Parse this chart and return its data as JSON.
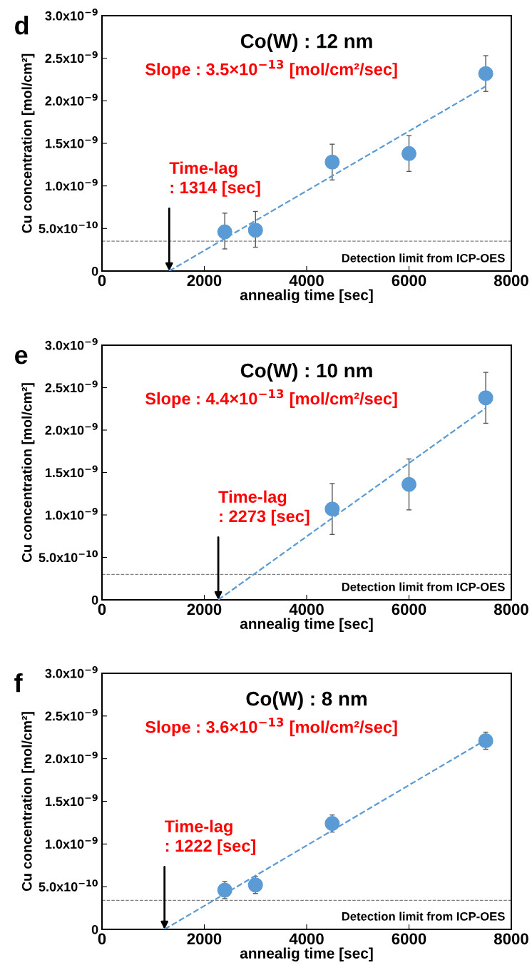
{
  "chart_data": [
    {
      "type": "scatter",
      "title": "Co(W) : 12 nm",
      "xlabel": "annealig time [sec]",
      "ylabel": "Cu concentration [mol/cm²]",
      "xlim": [
        0,
        8000
      ],
      "xticks": [
        0,
        2000,
        4000,
        6000,
        8000
      ],
      "ylim": [
        0,
        3e-09
      ],
      "yticks": [
        0,
        {
          "value": 5e-10,
          "label": "5.0x10$^{−10}$"
        },
        {
          "value": 1e-09,
          "label": "1.0x10$^{−9}$"
        },
        {
          "value": 1.5e-09,
          "label": "1.5x10$^{−9}$"
        },
        {
          "value": 2e-09,
          "label": "2.0x10$^{−9}$"
        },
        {
          "value": 2.5e-09,
          "label": "2.5x10$^{−9}$"
        },
        {
          "value": 3e-09,
          "label": "3.0x10$^{−9}$"
        }
      ],
      "grid": false,
      "legend": false,
      "marker": "circle",
      "series": [
        {
          "color": "#5b9bd5",
          "x": [
            2400,
            3000,
            4500,
            6000,
            7500
          ],
          "values": [
            4.6e-10,
            4.8e-10,
            1.28e-09,
            1.38e-09,
            2.32e-09
          ],
          "errors": [
            [
              2.6e-10,
              6.8e-10
            ],
            [
              2.8e-10,
              7e-10
            ],
            [
              1.07e-09,
              1.49e-09
            ],
            [
              1.17e-09,
              1.59e-09
            ],
            [
              2.11e-09,
              2.53e-09
            ]
          ]
        },
        {
          "type": "line",
          "color": "#5b9bd5",
          "line_style": "dashed",
          "marker": "none",
          "x": [
            1314,
            7500
          ],
          "values": [
            0,
            2.17e-09
          ]
        }
      ],
      "ref_lines": [
        {
          "axis": "y",
          "value": 3.5e-10,
          "label": "Detection limit from ICP-OES",
          "color": "#808080",
          "line_style": "dashed"
        }
      ],
      "annotations": [
        "d",
        "Slope : 3.5×10$^{−13}$ [mol/cm²/sec]",
        {
          "text": "Time-lag\n: 1314 [sec]",
          "x": 1314,
          "y": 0
        }
      ]
    },
    {
      "type": "scatter",
      "title": "Co(W) : 10 nm",
      "xlabel": "annealig time [sec]",
      "ylabel": "Cu concentration [mol/cm²]",
      "xlim": [
        0,
        8000
      ],
      "xticks": [
        0,
        2000,
        4000,
        6000,
        8000
      ],
      "ylim": [
        0,
        3e-09
      ],
      "yticks": [
        0,
        {
          "value": 5e-10,
          "label": "5.0x10$^{−10}$"
        },
        {
          "value": 1e-09,
          "label": "1.0x10$^{−9}$"
        },
        {
          "value": 1.5e-09,
          "label": "1.5x10$^{−9}$"
        },
        {
          "value": 2e-09,
          "label": "2.0x10$^{−9}$"
        },
        {
          "value": 2.5e-09,
          "label": "2.5x10$^{−9}$"
        },
        {
          "value": 3e-09,
          "label": "3.0x10$^{−9}$"
        }
      ],
      "grid": false,
      "legend": false,
      "marker": "circle",
      "series": [
        {
          "color": "#5b9bd5",
          "x": [
            4500,
            6000,
            7500
          ],
          "values": [
            1.07e-09,
            1.36e-09,
            2.38e-09
          ],
          "errors": [
            [
              7.7e-10,
              1.37e-09
            ],
            [
              1.06e-09,
              1.66e-09
            ],
            [
              2.08e-09,
              2.68e-09
            ]
          ]
        },
        {
          "type": "line",
          "color": "#5b9bd5",
          "line_style": "dashed",
          "marker": "none",
          "x": [
            2273,
            7500
          ],
          "values": [
            0,
            2.26e-09
          ]
        }
      ],
      "ref_lines": [
        {
          "axis": "y",
          "value": 3e-10,
          "label": "Detection limit from ICP-OES",
          "color": "#808080",
          "line_style": "dashed"
        }
      ],
      "annotations": [
        "e",
        "Slope : 4.4×10$^{−13}$ [mol/cm²/sec]",
        {
          "text": "Time-lag\n: 2273 [sec]",
          "x": 2273,
          "y": 0
        }
      ]
    },
    {
      "type": "scatter",
      "title": "Co(W) : 8 nm",
      "xlabel": "annealig time [sec]",
      "ylabel": "Cu concentration [mol/cm²]",
      "xlim": [
        0,
        8000
      ],
      "xticks": [
        0,
        2000,
        4000,
        6000,
        8000
      ],
      "ylim": [
        0,
        3e-09
      ],
      "yticks": [
        0,
        {
          "value": 5e-10,
          "label": "5.0x10$^{−10}$"
        },
        {
          "value": 1e-09,
          "label": "1.0x10$^{−9}$"
        },
        {
          "value": 1.5e-09,
          "label": "1.5x10$^{−9}$"
        },
        {
          "value": 2e-09,
          "label": "2.0x10$^{−9}$"
        },
        {
          "value": 2.5e-09,
          "label": "2.5x10$^{−9}$"
        },
        {
          "value": 3e-09,
          "label": "3.0x10$^{−9}$"
        }
      ],
      "grid": false,
      "legend": false,
      "marker": "circle",
      "series": [
        {
          "color": "#5b9bd5",
          "x": [
            2400,
            3000,
            4500,
            7500
          ],
          "values": [
            4.6e-10,
            5.2e-10,
            1.24e-09,
            2.21e-09
          ],
          "errors": [
            [
              3.6e-10,
              5.6e-10
            ],
            [
              4.2e-10,
              6.2e-10
            ],
            [
              1.14e-09,
              1.34e-09
            ],
            [
              2.11e-09,
              2.31e-09
            ]
          ]
        },
        {
          "type": "line",
          "color": "#5b9bd5",
          "line_style": "dashed",
          "marker": "none",
          "x": [
            1222,
            7500
          ],
          "values": [
            0,
            2.22e-09
          ]
        }
      ],
      "ref_lines": [
        {
          "axis": "y",
          "value": 3.4e-10,
          "label": "Detection limit from ICP-OES",
          "color": "#808080",
          "line_style": "dashed"
        }
      ],
      "annotations": [
        "f",
        "Slope : 3.6×10$^{−13}$ [mol/cm²/sec]",
        {
          "text": "Time-lag\n: 1222 [sec]",
          "x": 1222,
          "y": 0
        }
      ]
    }
  ]
}
